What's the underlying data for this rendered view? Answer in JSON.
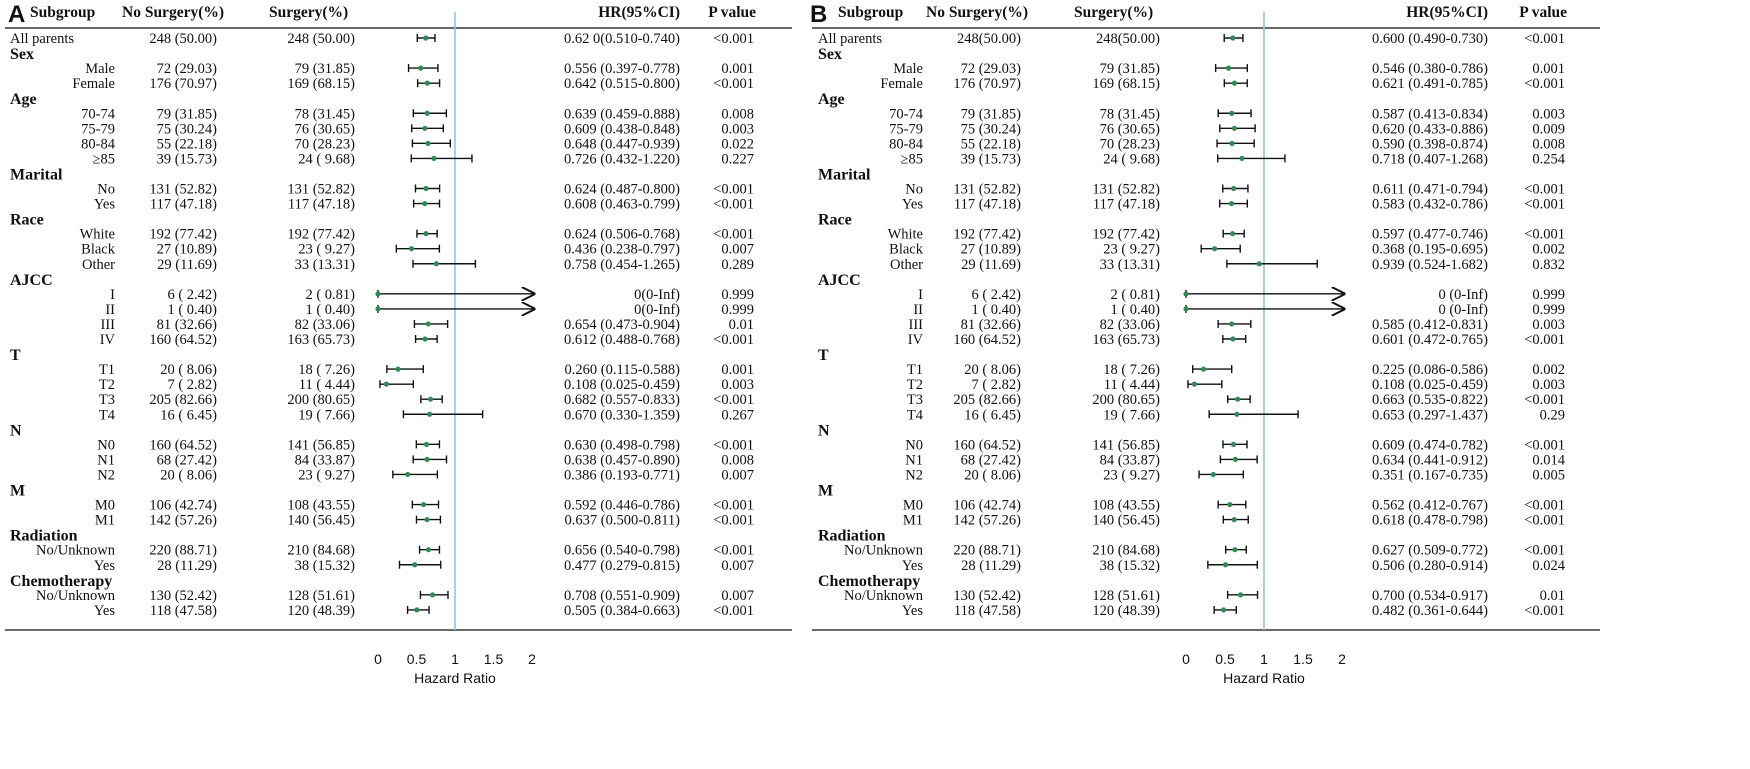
{
  "chart_data": [
    {
      "type": "forest",
      "panel_label": "A",
      "columns": {
        "subgroup": "Subgroup",
        "no_surgery": "No Surgery(%)",
        "surgery": "Surgery(%)",
        "hr": "HR(95%CI)",
        "p": "P value"
      },
      "xlabel": "Hazard Ratio",
      "xlim": [
        0,
        2
      ],
      "xticks": [
        "0",
        "0.5",
        "1",
        "1.5",
        "2"
      ],
      "reference_line": 1,
      "rows": [
        {
          "kind": "first",
          "label": "All parents",
          "no": "248 (50.00)",
          "yes": "248 (50.00)",
          "hr_text": "0.62 0(0.510-0.740)",
          "p": "<0.001",
          "hr": 0.62,
          "lo": 0.51,
          "hi": 0.74
        },
        {
          "kind": "group",
          "label": "Sex"
        },
        {
          "kind": "sub",
          "label": "Male",
          "no": "72 (29.03)",
          "yes": "79 (31.85)",
          "hr_text": "0.556 (0.397-0.778)",
          "p": "0.001",
          "hr": 0.556,
          "lo": 0.397,
          "hi": 0.778
        },
        {
          "kind": "sub",
          "label": "Female",
          "no": "176 (70.97)",
          "yes": "169 (68.15)",
          "hr_text": "0.642 (0.515-0.800)",
          "p": "<0.001",
          "hr": 0.642,
          "lo": 0.515,
          "hi": 0.8
        },
        {
          "kind": "group",
          "label": "Age"
        },
        {
          "kind": "sub",
          "label": "70-74",
          "no": "79 (31.85)",
          "yes": "78 (31.45)",
          "hr_text": "0.639 (0.459-0.888)",
          "p": "0.008",
          "hr": 0.639,
          "lo": 0.459,
          "hi": 0.888
        },
        {
          "kind": "sub",
          "label": "75-79",
          "no": "75 (30.24)",
          "yes": "76 (30.65)",
          "hr_text": "0.609 (0.438-0.848)",
          "p": "0.003",
          "hr": 0.609,
          "lo": 0.438,
          "hi": 0.848
        },
        {
          "kind": "sub",
          "label": "80-84",
          "no": "55 (22.18)",
          "yes": "70 (28.23)",
          "hr_text": "0.648 (0.447-0.939)",
          "p": "0.022",
          "hr": 0.648,
          "lo": 0.447,
          "hi": 0.939
        },
        {
          "kind": "sub",
          "label": "≥85",
          "no": "39 (15.73)",
          "yes": "24 ( 9.68)",
          "hr_text": "0.726 (0.432-1.220)",
          "p": "0.227",
          "hr": 0.726,
          "lo": 0.432,
          "hi": 1.22
        },
        {
          "kind": "group",
          "label": "Marital"
        },
        {
          "kind": "sub",
          "label": "No",
          "no": "131 (52.82)",
          "yes": "131 (52.82)",
          "hr_text": "0.624 (0.487-0.800)",
          "p": "<0.001",
          "hr": 0.624,
          "lo": 0.487,
          "hi": 0.8
        },
        {
          "kind": "sub",
          "label": "Yes",
          "no": "117 (47.18)",
          "yes": "117 (47.18)",
          "hr_text": "0.608 (0.463-0.799)",
          "p": "<0.001",
          "hr": 0.608,
          "lo": 0.463,
          "hi": 0.799
        },
        {
          "kind": "group",
          "label": "Race"
        },
        {
          "kind": "sub",
          "label": "White",
          "no": "192 (77.42)",
          "yes": "192 (77.42)",
          "hr_text": "0.624 (0.506-0.768)",
          "p": "<0.001",
          "hr": 0.624,
          "lo": 0.506,
          "hi": 0.768
        },
        {
          "kind": "sub",
          "label": "Black",
          "no": "27 (10.89)",
          "yes": "23 ( 9.27)",
          "hr_text": "0.436 (0.238-0.797)",
          "p": "0.007",
          "hr": 0.436,
          "lo": 0.238,
          "hi": 0.797
        },
        {
          "kind": "sub",
          "label": "Other",
          "no": "29 (11.69)",
          "yes": "33 (13.31)",
          "hr_text": "0.758 (0.454-1.265)",
          "p": "0.289",
          "hr": 0.758,
          "lo": 0.454,
          "hi": 1.265
        },
        {
          "kind": "group",
          "label": "AJCC"
        },
        {
          "kind": "sub",
          "label": "I",
          "no": "6 ( 2.42)",
          "yes": "2 ( 0.81)",
          "hr_text": "0(0-Inf)",
          "p": "0.999",
          "hr": 0,
          "lo": 0,
          "hi": null,
          "arrow": true
        },
        {
          "kind": "sub",
          "label": "II",
          "no": "1 ( 0.40)",
          "yes": "1 ( 0.40)",
          "hr_text": "0(0-Inf)",
          "p": "0.999",
          "hr": 0,
          "lo": 0,
          "hi": null,
          "arrow": true
        },
        {
          "kind": "sub",
          "label": "III",
          "no": "81 (32.66)",
          "yes": "82 (33.06)",
          "hr_text": "0.654 (0.473-0.904)",
          "p": "0.01",
          "hr": 0.654,
          "lo": 0.473,
          "hi": 0.904
        },
        {
          "kind": "sub",
          "label": "IV",
          "no": "160 (64.52)",
          "yes": "163 (65.73)",
          "hr_text": "0.612 (0.488-0.768)",
          "p": "<0.001",
          "hr": 0.612,
          "lo": 0.488,
          "hi": 0.768
        },
        {
          "kind": "group",
          "label": "T"
        },
        {
          "kind": "sub",
          "label": "T1",
          "no": "20 ( 8.06)",
          "yes": "18 ( 7.26)",
          "hr_text": "0.260 (0.115-0.588)",
          "p": "0.001",
          "hr": 0.26,
          "lo": 0.115,
          "hi": 0.588
        },
        {
          "kind": "sub",
          "label": "T2",
          "no": "7 ( 2.82)",
          "yes": "11 ( 4.44)",
          "hr_text": "0.108 (0.025-0.459)",
          "p": "0.003",
          "hr": 0.108,
          "lo": 0.025,
          "hi": 0.459
        },
        {
          "kind": "sub",
          "label": "T3",
          "no": "205 (82.66)",
          "yes": "200 (80.65)",
          "hr_text": "0.682 (0.557-0.833)",
          "p": "<0.001",
          "hr": 0.682,
          "lo": 0.557,
          "hi": 0.833
        },
        {
          "kind": "sub",
          "label": "T4",
          "no": "16 ( 6.45)",
          "yes": "19 ( 7.66)",
          "hr_text": "0.670 (0.330-1.359)",
          "p": "0.267",
          "hr": 0.67,
          "lo": 0.33,
          "hi": 1.359
        },
        {
          "kind": "group",
          "label": "N"
        },
        {
          "kind": "sub",
          "label": "N0",
          "no": "160 (64.52)",
          "yes": "141 (56.85)",
          "hr_text": "0.630 (0.498-0.798)",
          "p": "<0.001",
          "hr": 0.63,
          "lo": 0.498,
          "hi": 0.798
        },
        {
          "kind": "sub",
          "label": "N1",
          "no": "68 (27.42)",
          "yes": "84 (33.87)",
          "hr_text": "0.638 (0.457-0.890)",
          "p": "0.008",
          "hr": 0.638,
          "lo": 0.457,
          "hi": 0.89
        },
        {
          "kind": "sub",
          "label": "N2",
          "no": "20 ( 8.06)",
          "yes": "23 ( 9.27)",
          "hr_text": "0.386 (0.193-0.771)",
          "p": "0.007",
          "hr": 0.386,
          "lo": 0.193,
          "hi": 0.771
        },
        {
          "kind": "group",
          "label": "M"
        },
        {
          "kind": "sub",
          "label": "M0",
          "no": "106 (42.74)",
          "yes": "108 (43.55)",
          "hr_text": "0.592 (0.446-0.786)",
          "p": "<0.001",
          "hr": 0.592,
          "lo": 0.446,
          "hi": 0.786
        },
        {
          "kind": "sub",
          "label": "M1",
          "no": "142 (57.26)",
          "yes": "140 (56.45)",
          "hr_text": "0.637 (0.500-0.811)",
          "p": "<0.001",
          "hr": 0.637,
          "lo": 0.5,
          "hi": 0.811
        },
        {
          "kind": "group",
          "label": "Radiation"
        },
        {
          "kind": "sub",
          "label": "No/Unknown",
          "no": "220 (88.71)",
          "yes": "210 (84.68)",
          "hr_text": "0.656 (0.540-0.798)",
          "p": "<0.001",
          "hr": 0.656,
          "lo": 0.54,
          "hi": 0.798
        },
        {
          "kind": "sub",
          "label": "Yes",
          "no": "28 (11.29)",
          "yes": "38 (15.32)",
          "hr_text": "0.477 (0.279-0.815)",
          "p": "0.007",
          "hr": 0.477,
          "lo": 0.279,
          "hi": 0.815
        },
        {
          "kind": "group",
          "label": "Chemotherapy"
        },
        {
          "kind": "sub",
          "label": "No/Unknown",
          "no": "130 (52.42)",
          "yes": "128 (51.61)",
          "hr_text": "0.708 (0.551-0.909)",
          "p": "0.007",
          "hr": 0.708,
          "lo": 0.551,
          "hi": 0.909
        },
        {
          "kind": "sub",
          "label": "Yes",
          "no": "118 (47.58)",
          "yes": "120 (48.39)",
          "hr_text": "0.505 (0.384-0.663)",
          "p": "<0.001",
          "hr": 0.505,
          "lo": 0.384,
          "hi": 0.663
        }
      ]
    },
    {
      "type": "forest",
      "panel_label": "B",
      "columns": {
        "subgroup": "Subgroup",
        "no_surgery": "No Surgery(%)",
        "surgery": "Surgery(%)",
        "hr": "HR(95%CI)",
        "p": "P value"
      },
      "xlabel": "Hazard Ratio",
      "xlim": [
        0,
        2
      ],
      "xticks": [
        "0",
        "0.5",
        "1",
        "1.5",
        "2"
      ],
      "reference_line": 1,
      "rows": [
        {
          "kind": "first",
          "label": "All parents",
          "no": "248(50.00)",
          "yes": "248(50.00)",
          "hr_text": "0.600 (0.490-0.730)",
          "p": "<0.001",
          "hr": 0.6,
          "lo": 0.49,
          "hi": 0.73
        },
        {
          "kind": "group",
          "label": "Sex"
        },
        {
          "kind": "sub",
          "label": "Male",
          "no": "72 (29.03)",
          "yes": "79 (31.85)",
          "hr_text": "0.546 (0.380-0.786)",
          "p": "0.001",
          "hr": 0.546,
          "lo": 0.38,
          "hi": 0.786
        },
        {
          "kind": "sub",
          "label": "Female",
          "no": "176 (70.97)",
          "yes": "169 (68.15)",
          "hr_text": "0.621 (0.491-0.785)",
          "p": "<0.001",
          "hr": 0.621,
          "lo": 0.491,
          "hi": 0.785
        },
        {
          "kind": "group",
          "label": "Age"
        },
        {
          "kind": "sub",
          "label": "70-74",
          "no": "79 (31.85)",
          "yes": "78 (31.45)",
          "hr_text": "0.587 (0.413-0.834)",
          "p": "0.003",
          "hr": 0.587,
          "lo": 0.413,
          "hi": 0.834
        },
        {
          "kind": "sub",
          "label": "75-79",
          "no": "75 (30.24)",
          "yes": "76 (30.65)",
          "hr_text": "0.620 (0.433-0.886)",
          "p": "0.009",
          "hr": 0.62,
          "lo": 0.433,
          "hi": 0.886
        },
        {
          "kind": "sub",
          "label": "80-84",
          "no": "55 (22.18)",
          "yes": "70 (28.23)",
          "hr_text": "0.590 (0.398-0.874)",
          "p": "0.008",
          "hr": 0.59,
          "lo": 0.398,
          "hi": 0.874
        },
        {
          "kind": "sub",
          "label": "≥85",
          "no": "39 (15.73)",
          "yes": "24 ( 9.68)",
          "hr_text": "0.718 (0.407-1.268)",
          "p": "0.254",
          "hr": 0.718,
          "lo": 0.407,
          "hi": 1.268
        },
        {
          "kind": "group",
          "label": "Marital"
        },
        {
          "kind": "sub",
          "label": "No",
          "no": "131 (52.82)",
          "yes": "131 (52.82)",
          "hr_text": "0.611 (0.471-0.794)",
          "p": "<0.001",
          "hr": 0.611,
          "lo": 0.471,
          "hi": 0.794
        },
        {
          "kind": "sub",
          "label": "Yes",
          "no": "117 (47.18)",
          "yes": "117 (47.18)",
          "hr_text": "0.583 (0.432-0.786)",
          "p": "<0.001",
          "hr": 0.583,
          "lo": 0.432,
          "hi": 0.786
        },
        {
          "kind": "group",
          "label": "Race"
        },
        {
          "kind": "sub",
          "label": "White",
          "no": "192 (77.42)",
          "yes": "192 (77.42)",
          "hr_text": "0.597 (0.477-0.746)",
          "p": "<0.001",
          "hr": 0.597,
          "lo": 0.477,
          "hi": 0.746
        },
        {
          "kind": "sub",
          "label": "Black",
          "no": "27 (10.89)",
          "yes": "23 ( 9.27)",
          "hr_text": "0.368 (0.195-0.695)",
          "p": "0.002",
          "hr": 0.368,
          "lo": 0.195,
          "hi": 0.695
        },
        {
          "kind": "sub",
          "label": "Other",
          "no": "29 (11.69)",
          "yes": "33 (13.31)",
          "hr_text": "0.939 (0.524-1.682)",
          "p": "0.832",
          "hr": 0.939,
          "lo": 0.524,
          "hi": 1.682
        },
        {
          "kind": "group",
          "label": "AJCC"
        },
        {
          "kind": "sub",
          "label": "I",
          "no": "6 ( 2.42)",
          "yes": "2 ( 0.81)",
          "hr_text": "0 (0-Inf)",
          "p": "0.999",
          "hr": 0,
          "lo": 0,
          "hi": null,
          "arrow": true
        },
        {
          "kind": "sub",
          "label": "II",
          "no": "1 ( 0.40)",
          "yes": "1 ( 0.40)",
          "hr_text": "0 (0-Inf)",
          "p": "0.999",
          "hr": 0,
          "lo": 0,
          "hi": null,
          "arrow": true
        },
        {
          "kind": "sub",
          "label": "III",
          "no": "81 (32.66)",
          "yes": "82 (33.06)",
          "hr_text": "0.585 (0.412-0.831)",
          "p": "0.003",
          "hr": 0.585,
          "lo": 0.412,
          "hi": 0.831
        },
        {
          "kind": "sub",
          "label": "IV",
          "no": "160 (64.52)",
          "yes": "163 (65.73)",
          "hr_text": "0.601 (0.472-0.765)",
          "p": "<0.001",
          "hr": 0.601,
          "lo": 0.472,
          "hi": 0.765
        },
        {
          "kind": "group",
          "label": "T"
        },
        {
          "kind": "sub",
          "label": "T1",
          "no": "20 ( 8.06)",
          "yes": "18 ( 7.26)",
          "hr_text": "0.225 (0.086-0.586)",
          "p": "0.002",
          "hr": 0.225,
          "lo": 0.086,
          "hi": 0.586
        },
        {
          "kind": "sub",
          "label": "T2",
          "no": "7 ( 2.82)",
          "yes": "11 ( 4.44)",
          "hr_text": "0.108 (0.025-0.459)",
          "p": "0.003",
          "hr": 0.108,
          "lo": 0.025,
          "hi": 0.459
        },
        {
          "kind": "sub",
          "label": "T3",
          "no": "205 (82.66)",
          "yes": "200 (80.65)",
          "hr_text": "0.663 (0.535-0.822)",
          "p": "<0.001",
          "hr": 0.663,
          "lo": 0.535,
          "hi": 0.822
        },
        {
          "kind": "sub",
          "label": "T4",
          "no": "16 ( 6.45)",
          "yes": "19 ( 7.66)",
          "hr_text": "0.653 (0.297-1.437)",
          "p": "0.29",
          "hr": 0.653,
          "lo": 0.297,
          "hi": 1.437
        },
        {
          "kind": "group",
          "label": "N"
        },
        {
          "kind": "sub",
          "label": "N0",
          "no": "160 (64.52)",
          "yes": "141 (56.85)",
          "hr_text": "0.609 (0.474-0.782)",
          "p": "<0.001",
          "hr": 0.609,
          "lo": 0.474,
          "hi": 0.782
        },
        {
          "kind": "sub",
          "label": "N1",
          "no": "68 (27.42)",
          "yes": "84 (33.87)",
          "hr_text": "0.634 (0.441-0.912)",
          "p": "0.014",
          "hr": 0.634,
          "lo": 0.441,
          "hi": 0.912
        },
        {
          "kind": "sub",
          "label": "N2",
          "no": "20 ( 8.06)",
          "yes": "23 ( 9.27)",
          "hr_text": "0.351 (0.167-0.735)",
          "p": "0.005",
          "hr": 0.351,
          "lo": 0.167,
          "hi": 0.735
        },
        {
          "kind": "group",
          "label": "M"
        },
        {
          "kind": "sub",
          "label": "M0",
          "no": "106 (42.74)",
          "yes": "108 (43.55)",
          "hr_text": "0.562 (0.412-0.767)",
          "p": "<0.001",
          "hr": 0.562,
          "lo": 0.412,
          "hi": 0.767
        },
        {
          "kind": "sub",
          "label": "M1",
          "no": "142 (57.26)",
          "yes": "140 (56.45)",
          "hr_text": "0.618 (0.478-0.798)",
          "p": "<0.001",
          "hr": 0.618,
          "lo": 0.478,
          "hi": 0.798
        },
        {
          "kind": "group",
          "label": "Radiation"
        },
        {
          "kind": "sub",
          "label": "No/Unknown",
          "no": "220 (88.71)",
          "yes": "210 (84.68)",
          "hr_text": "0.627 (0.509-0.772)",
          "p": "<0.001",
          "hr": 0.627,
          "lo": 0.509,
          "hi": 0.772
        },
        {
          "kind": "sub",
          "label": "Yes",
          "no": "28 (11.29)",
          "yes": "38 (15.32)",
          "hr_text": "0.506 (0.280-0.914)",
          "p": "0.024",
          "hr": 0.506,
          "lo": 0.28,
          "hi": 0.914
        },
        {
          "kind": "group",
          "label": "Chemotherapy"
        },
        {
          "kind": "sub",
          "label": "No/Unknown",
          "no": "130 (52.42)",
          "yes": "128 (51.61)",
          "hr_text": "0.700 (0.534-0.917)",
          "p": "0.01",
          "hr": 0.7,
          "lo": 0.534,
          "hi": 0.917
        },
        {
          "kind": "sub",
          "label": "Yes",
          "no": "118 (47.58)",
          "yes": "120 (48.39)",
          "hr_text": "0.482 (0.361-0.644)",
          "p": "<0.001",
          "hr": 0.482,
          "lo": 0.361,
          "hi": 0.644
        }
      ]
    }
  ],
  "colors": {
    "point": "#2e8b57",
    "reference_line": "#8ec3ea",
    "ci_line": "#111111",
    "rule": "#111111"
  }
}
